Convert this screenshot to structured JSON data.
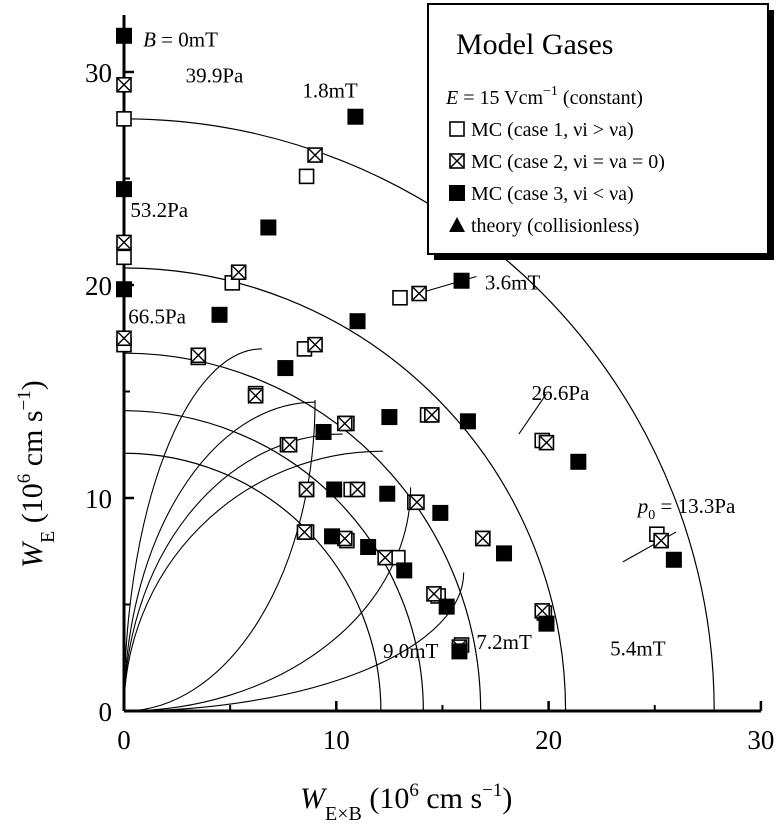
{
  "chart_data": {
    "type": "scatter",
    "xlabel": {
      "italic": "W",
      "sub": "E×B",
      "unit_pre": " (10",
      "unit_exp": "6",
      "unit_mid": " cm s",
      "unit_exp2": "−1",
      "unit_post": ")"
    },
    "ylabel": {
      "italic": "W",
      "sub": "E",
      "unit_pre": " (10",
      "unit_exp": "6",
      "unit_mid": " cm s",
      "unit_exp2": "−1",
      "unit_post": ")"
    },
    "xlim": [
      0,
      30
    ],
    "ylim": [
      0,
      30
    ],
    "xticks": [
      0,
      10,
      20,
      30
    ],
    "yticks": [
      0,
      10,
      20,
      30
    ],
    "grid": false,
    "legend": {
      "position": "top-right",
      "title": "Model Gases",
      "condition": "E = 15 Vcm−1 (constant)",
      "entries": [
        {
          "marker": "open-square",
          "label": "MC (case 1, νi > νa)"
        },
        {
          "marker": "crossed-square",
          "label": "MC (case 2, νi = νa = 0)"
        },
        {
          "marker": "filled-square",
          "label": "MC (case 3, νi < νa)"
        },
        {
          "marker": "filled-triangle",
          "label": "theory (collisionless)"
        }
      ]
    },
    "pressure_curves": [
      {
        "label": "13.3Pa",
        "prefix": "p0 = ",
        "radius": 27.8
      },
      {
        "label": "26.6Pa",
        "radius": 20.8
      },
      {
        "label": "39.9Pa",
        "radius": 16.8
      },
      {
        "label": "53.2Pa",
        "radius": 14.1
      },
      {
        "label": "66.5Pa",
        "radius": 12.1
      }
    ],
    "field_curves": [
      {
        "label": "B = 0mT"
      },
      {
        "label": "1.8mT"
      },
      {
        "label": "3.6mT"
      },
      {
        "label": "5.4mT"
      },
      {
        "label": "7.2mT"
      },
      {
        "label": "9.0mT"
      }
    ],
    "series": [
      {
        "name": "MC (case 1, νi > νa)",
        "marker": "open-square",
        "x": [
          0,
          8.6,
          13.0,
          0,
          5.1,
          8.5,
          3.5,
          6.2,
          7.7,
          0,
          10.5,
          14.3,
          19.7,
          8.6,
          10.7,
          13.7,
          16.9,
          25.1,
          8.6,
          10.5,
          12.9,
          14.8,
          19.8,
          15.9
        ],
        "y": [
          27.8,
          25.1,
          19.4,
          21.3,
          20.1,
          17.0,
          16.6,
          14.9,
          12.5,
          17.2,
          13.5,
          13.9,
          12.7,
          10.4,
          10.4,
          9.8,
          8.1,
          8.3,
          8.4,
          8.0,
          7.2,
          5.4,
          4.6,
          3.1
        ]
      },
      {
        "name": "MC (case 2, νi = νa = 0)",
        "marker": "crossed-square",
        "x": [
          0,
          9.0,
          0,
          5.4,
          9.0,
          13.9,
          0,
          3.5,
          6.2,
          7.8,
          10.4,
          14.5,
          19.9,
          8.6,
          11.0,
          13.8,
          16.9,
          25.3,
          8.5,
          10.4,
          12.3,
          14.6,
          19.7,
          15.8
        ],
        "y": [
          29.4,
          26.1,
          22.0,
          20.6,
          17.2,
          19.6,
          17.5,
          16.7,
          14.8,
          12.5,
          13.5,
          13.9,
          12.6,
          10.4,
          10.4,
          9.8,
          8.1,
          8.0,
          8.4,
          8.1,
          7.2,
          5.5,
          4.7,
          3.0
        ]
      },
      {
        "name": "MC (case 3, νi < νa)",
        "marker": "filled-square",
        "x": [
          0,
          10.9,
          0,
          6.8,
          0,
          4.5,
          11.0,
          7.6,
          15.9,
          9.4,
          12.5,
          16.2,
          21.4,
          9.9,
          12.4,
          14.9,
          17.9,
          25.9,
          9.8,
          11.5,
          13.2,
          15.2,
          19.9,
          15.8
        ],
        "y": [
          31.7,
          27.9,
          24.5,
          22.7,
          19.8,
          18.6,
          18.3,
          16.1,
          20.2,
          13.1,
          13.8,
          13.6,
          11.7,
          10.4,
          10.2,
          9.3,
          7.4,
          7.1,
          8.2,
          7.7,
          6.6,
          4.9,
          4.1,
          2.8
        ]
      },
      {
        "name": "theory (collisionless)",
        "marker": "filled-triangle",
        "x": [],
        "y": []
      }
    ]
  }
}
